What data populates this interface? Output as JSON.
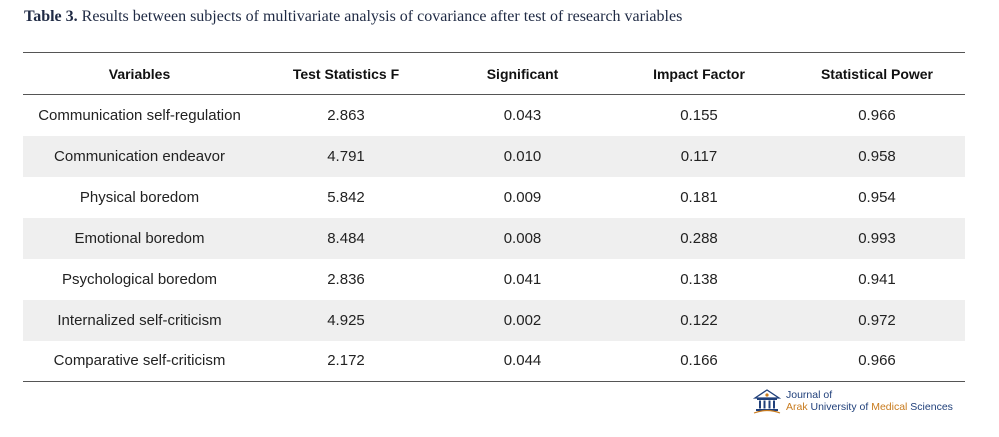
{
  "caption": {
    "label": "Table 3.",
    "text": "Results between subjects of multivariate analysis of covariance after test of research variables"
  },
  "table": {
    "headers": [
      "Variables",
      "Test Statistics F",
      "Significant",
      "Impact Factor",
      "Statistical Power"
    ],
    "rows": [
      [
        "Communication self-regulation",
        "2.863",
        "0.043",
        "0.155",
        "0.966"
      ],
      [
        "Communication endeavor",
        "4.791",
        "0.010",
        "0.117",
        "0.958"
      ],
      [
        "Physical boredom",
        "5.842",
        "0.009",
        "0.181",
        "0.954"
      ],
      [
        "Emotional boredom",
        "8.484",
        "0.008",
        "0.288",
        "0.993"
      ],
      [
        "Psychological boredom",
        "2.836",
        "0.041",
        "0.138",
        "0.941"
      ],
      [
        "Internalized self-criticism",
        "4.925",
        "0.002",
        "0.122",
        "0.972"
      ],
      [
        "Comparative self-criticism",
        "2.172",
        "0.044",
        "0.166",
        "0.966"
      ]
    ]
  },
  "journal": {
    "line1": "Journal of",
    "line2_a": "Arak",
    "line2_b": " University of ",
    "line2_c": "Medical",
    "line2_d": " Sciences",
    "logo_icon": "university-emblem-icon",
    "colors": {
      "primary": "#1f3f7a",
      "accent": "#c87b1e"
    }
  }
}
